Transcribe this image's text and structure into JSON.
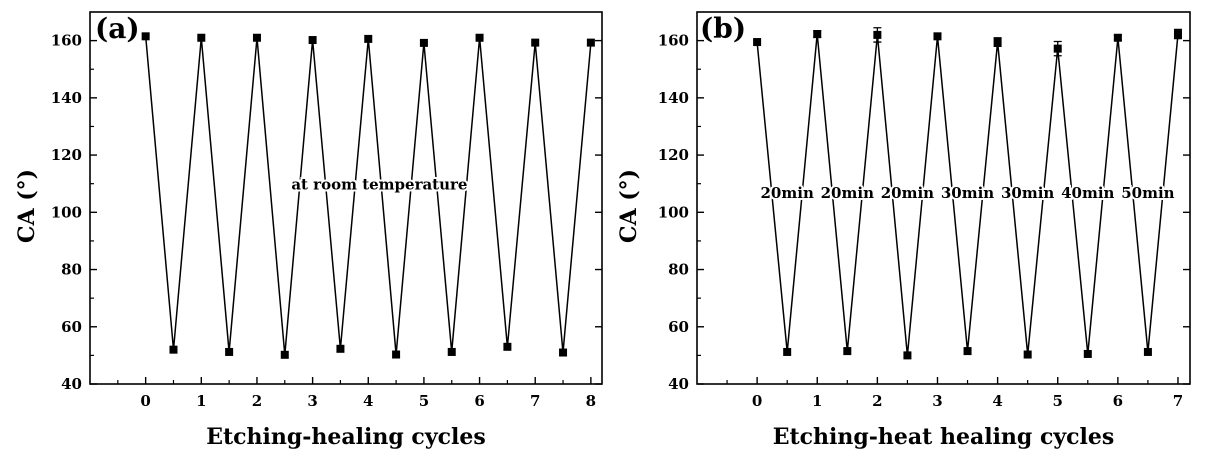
{
  "chart_data": [
    {
      "type": "line",
      "panel_label": "(a)",
      "xlabel": "Etching-healing cycles",
      "ylabel": "CA (°)",
      "xlim": [
        -1,
        8.2
      ],
      "ylim": [
        40,
        170
      ],
      "x_ticks": [
        0,
        1,
        2,
        3,
        4,
        5,
        6,
        7,
        8
      ],
      "y_ticks": [
        40,
        60,
        80,
        100,
        120,
        140,
        160
      ],
      "series": [
        {
          "x": [
            0,
            0.5,
            1,
            1.5,
            2,
            2.5,
            3,
            3.5,
            4,
            4.5,
            5,
            5.5,
            6,
            6.5,
            7,
            7.5,
            8
          ],
          "y": [
            161.5,
            52,
            161,
            51.2,
            161,
            50.2,
            160.2,
            52.3,
            160.6,
            50.3,
            159.2,
            51.2,
            161,
            53,
            159.3,
            51,
            159.3
          ],
          "error": [
            0,
            0,
            0,
            0,
            0,
            0,
            0,
            0,
            0,
            0,
            0,
            0,
            0,
            0,
            0,
            0,
            0
          ]
        }
      ],
      "annotations": [
        {
          "text": "at room temperature",
          "x": 4.2,
          "y": 108
        }
      ]
    },
    {
      "type": "line",
      "panel_label": "(b)",
      "xlabel": "Etching-heat healing cycles",
      "ylabel": "CA (°)",
      "xlim": [
        -1,
        7.2
      ],
      "ylim": [
        40,
        170
      ],
      "x_ticks": [
        0,
        1,
        2,
        3,
        4,
        5,
        6,
        7
      ],
      "y_ticks": [
        40,
        60,
        80,
        100,
        120,
        140,
        160
      ],
      "series": [
        {
          "x": [
            0,
            0.5,
            1,
            1.5,
            2,
            2.5,
            3,
            3.5,
            4,
            4.5,
            5,
            5.5,
            6,
            6.5,
            7
          ],
          "y": [
            159.5,
            51.2,
            162.3,
            51.5,
            162,
            50,
            161.5,
            51.5,
            159.5,
            50.3,
            157.2,
            50.5,
            161,
            51.2,
            162.3
          ],
          "error": [
            0,
            0,
            1.2,
            0,
            2.5,
            0,
            0.8,
            0,
            1.5,
            0,
            2.5,
            0,
            0.8,
            0,
            1.6
          ]
        }
      ],
      "annotations": [
        {
          "text": "20min",
          "x": 0.5,
          "y": 105
        },
        {
          "text": "20min",
          "x": 1.5,
          "y": 105
        },
        {
          "text": "20min",
          "x": 2.5,
          "y": 105
        },
        {
          "text": "30min",
          "x": 3.5,
          "y": 105
        },
        {
          "text": "30min",
          "x": 4.5,
          "y": 105
        },
        {
          "text": "40min",
          "x": 5.5,
          "y": 105
        },
        {
          "text": "50min",
          "x": 6.5,
          "y": 105
        }
      ]
    }
  ]
}
